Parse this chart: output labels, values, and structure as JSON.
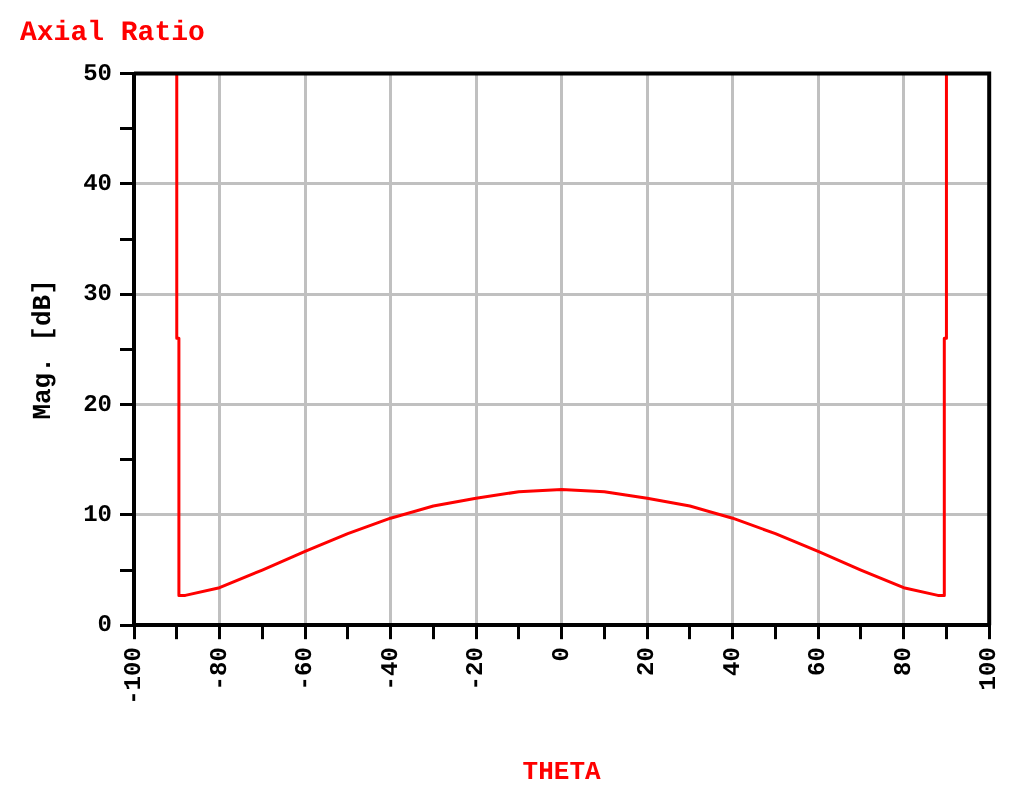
{
  "chart_data": {
    "type": "line",
    "title": "Axial Ratio",
    "xlabel": "THETA",
    "ylabel": "Mag. [dB]",
    "x": [
      -90,
      -90,
      -89.5,
      -89.5,
      -88,
      -80,
      -70,
      -60,
      -50,
      -40,
      -30,
      -20,
      -10,
      0,
      10,
      20,
      30,
      40,
      50,
      60,
      70,
      80,
      88,
      89.5,
      89.5,
      90,
      90
    ],
    "series": [
      {
        "color": "#ff0000",
        "values": [
          50,
          26,
          26,
          2.7,
          2.7,
          3.4,
          5,
          6.7,
          8.3,
          9.7,
          10.8,
          11.5,
          12.1,
          12.3,
          12.1,
          11.5,
          10.8,
          9.7,
          8.3,
          6.7,
          5,
          3.4,
          2.7,
          2.7,
          26,
          26,
          50
        ]
      }
    ],
    "xlim": [
      -100,
      100
    ],
    "xticks": [
      -100,
      {
        "value": -90,
        "label": null
      },
      -80,
      {
        "value": -70,
        "label": null
      },
      -60,
      {
        "value": -50,
        "label": null
      },
      -40,
      {
        "value": -30,
        "label": null
      },
      -20,
      {
        "value": -10,
        "label": null
      },
      0,
      {
        "value": 10,
        "label": null
      },
      20,
      {
        "value": 30,
        "label": null
      },
      40,
      {
        "value": 50,
        "label": null
      },
      60,
      {
        "value": 70,
        "label": null
      },
      80,
      {
        "value": 90,
        "label": null
      },
      100
    ],
    "ylim": [
      0,
      50
    ],
    "yticks": [
      0,
      {
        "value": 5,
        "label": null
      },
      10,
      {
        "value": 15,
        "label": null
      },
      20,
      {
        "value": 25,
        "label": null
      },
      30,
      {
        "value": 35,
        "label": null
      },
      40,
      {
        "value": 45,
        "label": null
      },
      50
    ],
    "grid": true,
    "marker": "none",
    "line_style": "solid"
  }
}
